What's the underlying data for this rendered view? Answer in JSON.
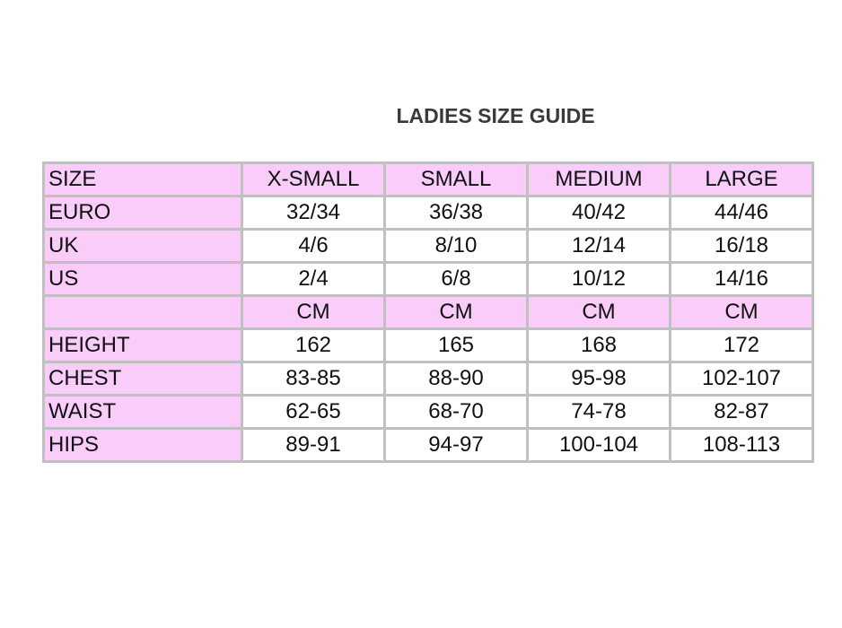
{
  "title": "LADIES SIZE GUIDE",
  "colors": {
    "highlight": "#f9ccf9",
    "border": "#c0c0c0"
  },
  "rows": [
    {
      "label": "SIZE",
      "values": [
        "X-SMALL",
        "SMALL",
        "MEDIUM",
        "LARGE"
      ],
      "highlight": true
    },
    {
      "label": "EURO",
      "values": [
        "32/34",
        "36/38",
        "40/42",
        "44/46"
      ]
    },
    {
      "label": "UK",
      "values": [
        "4/6",
        "8/10",
        "12/14",
        "16/18"
      ]
    },
    {
      "label": "US",
      "values": [
        "2/4",
        "6/8",
        "10/12",
        "14/16"
      ]
    },
    {
      "label": "",
      "values": [
        "CM",
        "CM",
        "CM",
        "CM"
      ],
      "highlight": true
    },
    {
      "label": "HEIGHT",
      "values": [
        "162",
        "165",
        "168",
        "172"
      ]
    },
    {
      "label": "CHEST",
      "values": [
        "83-85",
        "88-90",
        "95-98",
        "102-107"
      ]
    },
    {
      "label": "WAIST",
      "values": [
        "62-65",
        "68-70",
        "74-78",
        "82-87"
      ]
    },
    {
      "label": "HIPS",
      "values": [
        "89-91",
        "94-97",
        "100-104",
        "108-113"
      ]
    }
  ]
}
